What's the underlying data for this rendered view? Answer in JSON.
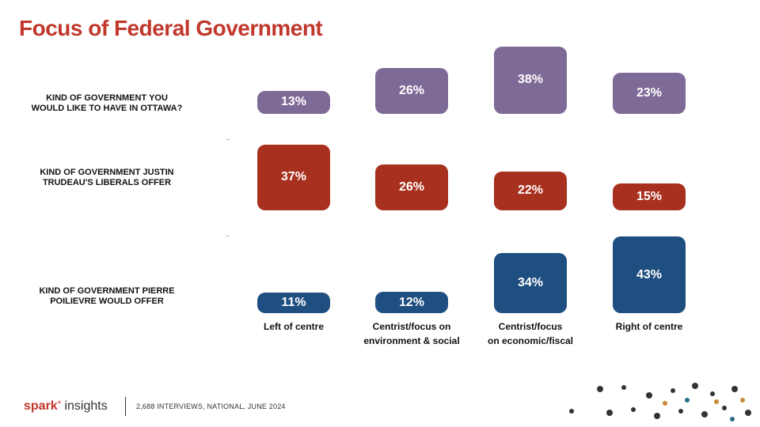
{
  "title": "Focus of Federal Government",
  "footer": {
    "brand_main": "spark",
    "brand_star": "*",
    "brand_rest": "insights",
    "note": "2,688 INTERVIEWS, NATIONAL, JUNE 2024"
  },
  "colors": {
    "title": "#c1372b",
    "purple": "#7e6a97",
    "red": "#a8301f",
    "blue": "#1f4e80"
  },
  "chart_data": {
    "type": "bubble-grid",
    "categories": [
      "Left of centre",
      "Centrist/focus on environment & social",
      "Centrist/focus on economic/fiscal",
      "Right of centre"
    ],
    "category_lines": [
      [
        "Left of centre"
      ],
      [
        "Centrist/focus on",
        "environment & social"
      ],
      [
        "Centrist/focus",
        "on economic/fiscal"
      ],
      [
        "Right of centre"
      ]
    ],
    "rows": [
      {
        "name": "KIND OF GOVERNMENT YOU WOULD LIKE TO HAVE IN OTTAWA?",
        "lines": [
          "KIND OF GOVERNMENT YOU",
          "WOULD LIKE TO HAVE IN OTTAWA?"
        ],
        "color": "#7e6a97",
        "values": [
          13,
          26,
          38,
          23
        ],
        "labels": [
          "13%",
          "26%",
          "38%",
          "23%"
        ]
      },
      {
        "name": "KIND OF GOVERNMENT JUSTIN TRUDEAU'S LIBERALS OFFER",
        "lines": [
          "KIND OF GOVERNMENT JUSTIN",
          "TRUDEAU'S LIBERALS OFFER"
        ],
        "color": "#a8301f",
        "values": [
          37,
          26,
          22,
          15
        ],
        "labels": [
          "37%",
          "26%",
          "22%",
          "15%"
        ]
      },
      {
        "name": "KIND OF GOVERNMENT PIERRE POILIEVRE WOULD OFFER",
        "lines": [
          "KIND OF GOVERNMENT PIERRE",
          "POILIEVRE WOULD OFFER"
        ],
        "color": "#1f4e80",
        "values": [
          11,
          12,
          34,
          43
        ],
        "labels": [
          "11%",
          "12%",
          "34%",
          "43%"
        ]
      }
    ]
  }
}
